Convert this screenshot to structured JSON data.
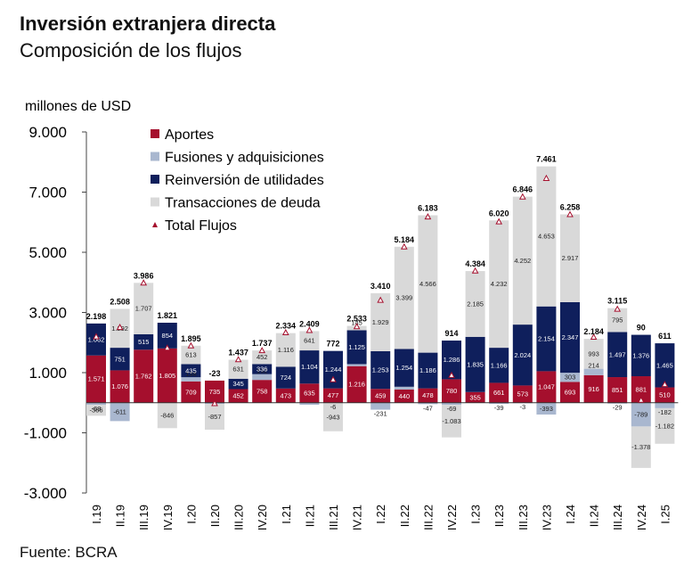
{
  "header": {
    "title": "Inversión extranjera directa",
    "subtitle": "Composición de los flujos"
  },
  "footer": {
    "source": "Fuente: BCRA"
  },
  "chart_data": {
    "type": "bar",
    "stacked": true,
    "title": "Inversión extranjera directa",
    "subtitle": "Composición de los flujos",
    "ylabel": "millones de USD",
    "ylim": [
      -3000,
      9000
    ],
    "yticks": [
      -3000,
      -1000,
      1000,
      3000,
      5000,
      7000,
      9000
    ],
    "ytick_labels": [
      "-3.000",
      "-1.000",
      "1.000",
      "3.000",
      "5.000",
      "7.000",
      "9.000"
    ],
    "grid": false,
    "legend_position": "top-left",
    "categories": [
      "I.19",
      "II.19",
      "III.19",
      "IV.19",
      "I.20",
      "II.20",
      "III.20",
      "IV.20",
      "I.21",
      "II.21",
      "III.21",
      "IV.21",
      "I.22",
      "II.22",
      "III.22",
      "IV.22",
      "I.23",
      "II.23",
      "III.23",
      "IV.23",
      "I.24",
      "II.24",
      "III.24",
      "IV.24",
      "I.25"
    ],
    "series": [
      {
        "name": "Aportes",
        "color": "#a50f2d",
        "values": [
          1571,
          1076,
          1762,
          1805,
          709,
          735,
          452,
          758,
          473,
          635,
          477,
          1216,
          459,
          440,
          478,
          780,
          355,
          661,
          573,
          1047,
          693,
          916,
          851,
          881,
          510
        ],
        "labels": [
          "1.571",
          "1.076",
          "1.762",
          "1.805",
          "709",
          "735",
          "452",
          "758",
          "473",
          "635",
          "477",
          "1.216",
          "459",
          "440",
          "478",
          "780",
          "355",
          "661",
          "573",
          "1.047",
          "693",
          "916",
          "851",
          "881",
          "510"
        ]
      },
      {
        "name": "Fusiones y adquisiciones",
        "color": "#a9b7cf",
        "values": [
          -68,
          -611,
          0,
          0,
          138,
          -40,
          0,
          192,
          0,
          -68,
          -6,
          67,
          -231,
          91,
          -47,
          -69,
          0,
          -39,
          -3,
          -393,
          303,
          214,
          -29,
          -789,
          -182
        ],
        "labels": [
          "-68",
          "-611",
          "",
          "",
          "138",
          "",
          "",
          "192",
          "",
          "",
          "-6",
          "",
          "-231",
          "",
          "-47",
          "-69",
          "",
          "-39",
          "-3",
          "-393",
          "303",
          "214",
          "-29",
          "-789",
          "-182"
        ]
      },
      {
        "name": "Reinversión de utilidades",
        "color": "#0f1f5c",
        "values": [
          1062,
          751,
          515,
          854,
          435,
          0,
          345,
          336,
          724,
          1104,
          1244,
          1125,
          1253,
          1254,
          1186,
          1286,
          1835,
          1166,
          2024,
          2154,
          2347,
          0,
          1497,
          1376,
          1465
        ],
        "labels": [
          "1.062",
          "751",
          "515",
          "854",
          "435",
          "",
          "345",
          "336",
          "724",
          "1.104",
          "1.244",
          "1.125",
          "1.253",
          "1.254",
          "1.186",
          "1.286",
          "1.835",
          "1.166",
          "2.024",
          "2.154",
          "2.347",
          "",
          "1.497",
          "1.376",
          "1.465"
        ]
      },
      {
        "name": "Transacciones de deuda",
        "color": "#d9d9d9",
        "values": [
          -366,
          1292,
          1707,
          -846,
          613,
          -857,
          631,
          452,
          1116,
          641,
          -943,
          145,
          1929,
          3399,
          4566,
          -1083,
          2185,
          4232,
          4252,
          4653,
          2917,
          993,
          795,
          -1378,
          -1182
        ],
        "labels": [
          "-366",
          "1.292",
          "1.707",
          "-846",
          "613",
          "-857",
          "631",
          "452",
          "1.116",
          "641",
          "-943",
          "145",
          "1.929",
          "3.399",
          "4.566",
          "-1.083",
          "2.185",
          "4.232",
          "4.252",
          "4.653",
          "2.917",
          "993",
          "795",
          "-1.378",
          "-1.182"
        ]
      }
    ],
    "total": {
      "name": "Total Flujos",
      "color": "#a50f2d",
      "marker": "triangle",
      "values": [
        2198,
        2508,
        3986,
        1821,
        1895,
        -23,
        1437,
        1737,
        2334,
        2409,
        772,
        2533,
        3410,
        5184,
        6183,
        914,
        4384,
        6020,
        6846,
        7461,
        6258,
        2184,
        3115,
        90,
        611
      ],
      "labels": [
        "2.198",
        "2.508",
        "3.986",
        "1.821",
        "1.895",
        "-23",
        "1.437",
        "1.737",
        "2.334",
        "2.409",
        "772",
        "2.533",
        "3.410",
        "5.184",
        "6.183",
        "914",
        "4.384",
        "6.020",
        "6.846",
        "7.461",
        "6.258",
        "2.184",
        "3.115",
        "90",
        "611"
      ]
    }
  }
}
